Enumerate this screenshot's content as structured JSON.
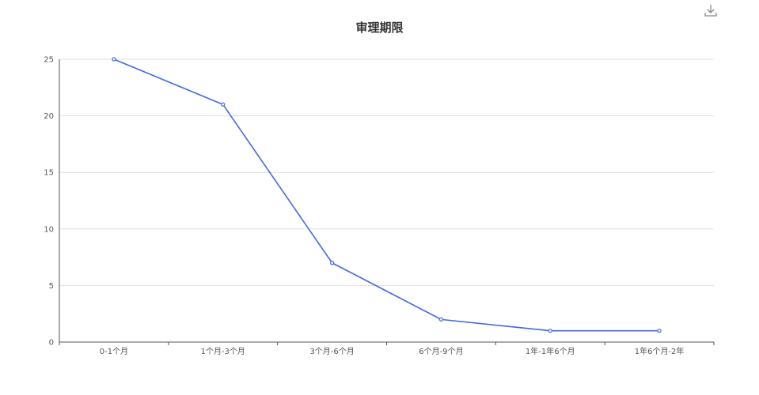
{
  "chart_data": {
    "type": "line",
    "title": "审理期限",
    "categories": [
      "0-1个月",
      "1个月-3个月",
      "3个月-6个月",
      "6个月-9个月",
      "1年-1年6个月",
      "1年6个月-2年"
    ],
    "series": [
      {
        "values": [
          25,
          21,
          7,
          2,
          1,
          1
        ]
      }
    ],
    "ylim": [
      0,
      25
    ],
    "yticks": [
      0,
      5,
      10,
      15,
      20,
      25
    ],
    "grid": true,
    "line_color": "#4169e1"
  },
  "toolbar": {
    "download_icon": "download-icon"
  }
}
